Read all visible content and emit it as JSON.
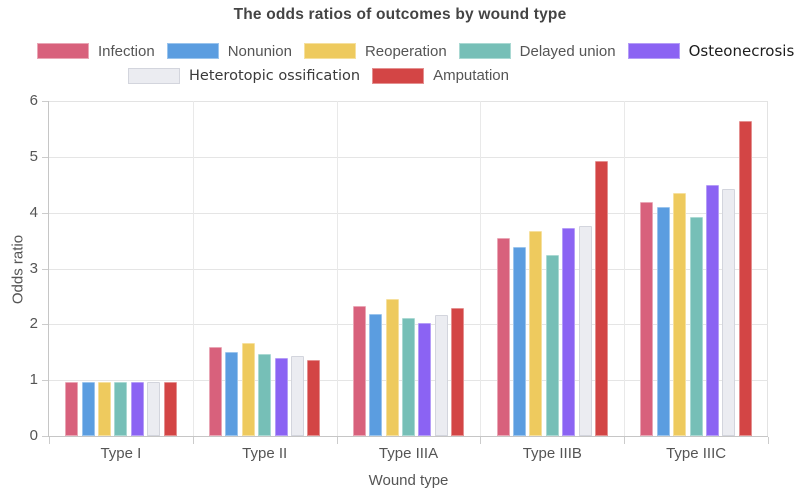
{
  "chart_data": {
    "type": "bar",
    "title": "The odds ratios of outcomes by wound type",
    "xlabel": "Wound type",
    "ylabel": "Odds ratio",
    "ylim": [
      0,
      6
    ],
    "yticks": [
      0,
      1,
      2,
      3,
      4,
      5,
      6
    ],
    "grid": true,
    "legend_position": "top",
    "categories": [
      "Type I",
      "Type II",
      "Type IIIA",
      "Type IIIB",
      "Type IIIC"
    ],
    "series": [
      {
        "name": "Infection",
        "color": "#d8617c",
        "border": "#e9a6b5",
        "values": [
          0.97,
          1.6,
          2.32,
          3.54,
          4.19
        ]
      },
      {
        "name": "Nonunion",
        "color": "#5b9de0",
        "border": "#9ac4ed",
        "values": [
          0.97,
          1.51,
          2.19,
          3.38,
          4.1
        ]
      },
      {
        "name": "Reoperation",
        "color": "#eeca5e",
        "border": "#f6e09e",
        "values": [
          0.97,
          1.66,
          2.45,
          3.67,
          4.36
        ]
      },
      {
        "name": "Delayed union",
        "color": "#76bfb7",
        "border": "#aad9d3",
        "values": [
          0.97,
          1.46,
          2.11,
          3.25,
          3.92
        ]
      },
      {
        "name": "Osteonecrosis",
        "color": "#8b63f3",
        "border": "#b59df7",
        "values": [
          0.97,
          1.39,
          2.02,
          3.73,
          4.49
        ],
        "label_style": "alt"
      },
      {
        "name": "Heterotopic ossification",
        "color": "#ebecf1",
        "border": "#d3d5dd",
        "values": [
          0.96,
          1.44,
          2.16,
          3.77,
          4.42
        ],
        "label_style": "alt2"
      },
      {
        "name": "Amputation",
        "color": "#d34545",
        "border": "#e49090",
        "values": [
          0.97,
          1.36,
          2.29,
          4.92,
          5.65
        ]
      }
    ],
    "legend_rows": [
      [
        0,
        1,
        2,
        3,
        4
      ],
      [
        5,
        6
      ]
    ]
  }
}
